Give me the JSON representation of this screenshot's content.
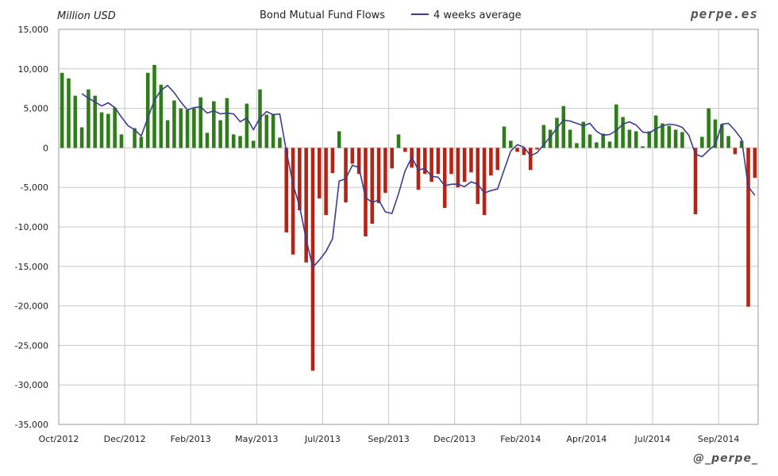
{
  "chart_data": {
    "type": "bar",
    "title": "Bond Mutual Fund Flows",
    "ylabel": "Million USD",
    "ylim": [
      -35000,
      15000
    ],
    "yticks": [
      15000,
      10000,
      5000,
      0,
      -5000,
      -10000,
      -15000,
      -20000,
      -25000,
      -30000,
      -35000
    ],
    "ytick_labels": [
      "15,000",
      "10,000",
      "5,000",
      "0",
      "-5,000",
      "-10,000",
      "-15,000",
      "-20,000",
      "-25,000",
      "-30,000",
      "-35,000"
    ],
    "x_tick_labels": [
      "Oct/2012",
      "Dec/2012",
      "Feb/2013",
      "May/2013",
      "Jul/2013",
      "Sep/2013",
      "Dec/2013",
      "Feb/2014",
      "Apr/2014",
      "Jul/2014",
      "Sep/2014"
    ],
    "grid": true,
    "legend": {
      "position": "top",
      "entries": [
        "4 weeks average"
      ]
    },
    "colors": {
      "positive": "#2e7d1a",
      "negative": "#b32416",
      "average_line": "#3b3b8f",
      "grid": "#c8c8c8"
    },
    "series": [
      {
        "type": "bar",
        "values": [
          9500,
          8800,
          6600,
          2600,
          7400,
          6600,
          4500,
          4300,
          5100,
          1700,
          0,
          2500,
          1400,
          9500,
          10500,
          8000,
          3500,
          6000,
          5000,
          4800,
          5000,
          6400,
          1900,
          5900,
          3500,
          6300,
          1700,
          1500,
          5600,
          900,
          7400,
          4200,
          4300,
          1300,
          -10700,
          -13500,
          -7900,
          -14500,
          -28200,
          -6400,
          -8500,
          -3200,
          2100,
          -6900,
          -2000,
          -3300,
          -11200,
          -9600,
          -7000,
          -5700,
          -2600,
          1700,
          -500,
          -2500,
          -5300,
          -3300,
          -4300,
          -3300,
          -7600,
          -3300,
          -5000,
          -4300,
          -3100,
          -7100,
          -8500,
          -3500,
          -2800,
          2700,
          900,
          -500,
          -900,
          -2800,
          -200,
          2900,
          2300,
          3800,
          5300,
          2300,
          600,
          3300,
          1700,
          700,
          1800,
          800,
          5500,
          3900,
          2300,
          2100,
          200,
          2100,
          4100,
          3100,
          2800,
          2300,
          2000,
          0,
          -8400,
          1400,
          5000,
          3600,
          3000,
          1500,
          -800,
          900,
          -20100,
          -3800
        ]
      },
      {
        "type": "line",
        "name": "4 weeks average",
        "values": [
          null,
          null,
          null,
          6850,
          6300,
          5800,
          5300,
          5700,
          5100,
          3900,
          2800,
          2300,
          1500,
          3800,
          6000,
          7300,
          7900,
          7000,
          5800,
          4800,
          5100,
          5200,
          4400,
          4700,
          4300,
          4400,
          4300,
          3300,
          3800,
          2300,
          3800,
          4600,
          4200,
          4300,
          -400,
          -4600,
          -7400,
          -11600,
          -15100,
          -14200,
          -13100,
          -11500,
          -4200,
          -3900,
          -2200,
          -2500,
          -6300,
          -6900,
          -6600,
          -8100,
          -8300,
          -5800,
          -2900,
          -1200,
          -2800,
          -2600,
          -3600,
          -3700,
          -4800,
          -4600,
          -4600,
          -4900,
          -4300,
          -4600,
          -5700,
          -5400,
          -5200,
          -2800,
          -400,
          400,
          100,
          -1000,
          -600,
          400,
          1400,
          2500,
          3500,
          3400,
          3100,
          2800,
          3100,
          2100,
          1600,
          1700,
          2200,
          3000,
          3300,
          2900,
          2000,
          1900,
          2400,
          2800,
          3000,
          2900,
          2600,
          1600,
          -800,
          -1100,
          -300,
          400,
          3000,
          3100,
          2200,
          1100,
          -4900,
          -6000
        ]
      }
    ]
  },
  "header": {
    "ylabel_text": "Million USD",
    "title_text": "Bond Mutual Fund Flows",
    "legend_text": "4 weeks average"
  },
  "branding": {
    "site": "perpe.es",
    "handle": "@_perpe_"
  }
}
